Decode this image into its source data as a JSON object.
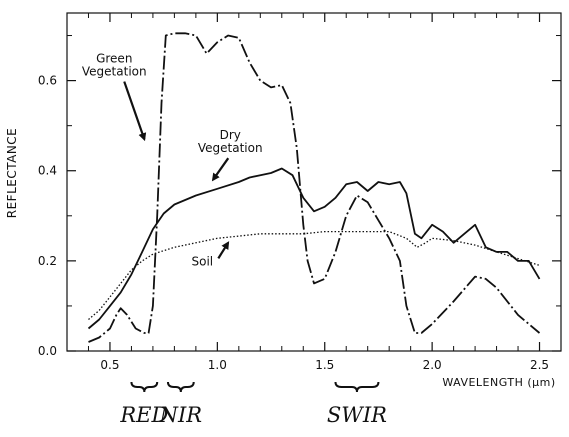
{
  "chart_data": {
    "type": "line",
    "title": "",
    "xlabel": "WAVELENGTH (μm)",
    "ylabel": "REFLECTANCE",
    "xlim": [
      0.3,
      2.6
    ],
    "ylim": [
      0.0,
      0.75
    ],
    "x_ticks": [
      "0.5",
      "1.0",
      "1.5",
      "2.0",
      "2.5"
    ],
    "y_ticks": [
      "0.0",
      "0.2",
      "0.4",
      "0.6"
    ],
    "grid": false,
    "legend": "none",
    "series": [
      {
        "name": "Green Vegetation",
        "style": "long-dash",
        "color": "#111111",
        "points": [
          [
            0.4,
            0.02
          ],
          [
            0.45,
            0.03
          ],
          [
            0.5,
            0.05
          ],
          [
            0.53,
            0.08
          ],
          [
            0.55,
            0.095
          ],
          [
            0.58,
            0.08
          ],
          [
            0.62,
            0.05
          ],
          [
            0.66,
            0.04
          ],
          [
            0.68,
            0.04
          ],
          [
            0.7,
            0.1
          ],
          [
            0.72,
            0.3
          ],
          [
            0.74,
            0.55
          ],
          [
            0.76,
            0.7
          ],
          [
            0.8,
            0.705
          ],
          [
            0.85,
            0.705
          ],
          [
            0.9,
            0.7
          ],
          [
            0.95,
            0.66
          ],
          [
            1.0,
            0.685
          ],
          [
            1.05,
            0.7
          ],
          [
            1.1,
            0.695
          ],
          [
            1.15,
            0.64
          ],
          [
            1.2,
            0.6
          ],
          [
            1.25,
            0.585
          ],
          [
            1.3,
            0.59
          ],
          [
            1.34,
            0.55
          ],
          [
            1.37,
            0.45
          ],
          [
            1.4,
            0.28
          ],
          [
            1.42,
            0.2
          ],
          [
            1.45,
            0.15
          ],
          [
            1.5,
            0.16
          ],
          [
            1.55,
            0.22
          ],
          [
            1.6,
            0.3
          ],
          [
            1.65,
            0.345
          ],
          [
            1.7,
            0.33
          ],
          [
            1.75,
            0.29
          ],
          [
            1.8,
            0.25
          ],
          [
            1.85,
            0.2
          ],
          [
            1.88,
            0.1
          ],
          [
            1.92,
            0.04
          ],
          [
            1.95,
            0.04
          ],
          [
            2.0,
            0.06
          ],
          [
            2.1,
            0.11
          ],
          [
            2.2,
            0.165
          ],
          [
            2.25,
            0.16
          ],
          [
            2.3,
            0.14
          ],
          [
            2.4,
            0.08
          ],
          [
            2.45,
            0.06
          ],
          [
            2.5,
            0.04
          ]
        ]
      },
      {
        "name": "Dry Vegetation",
        "style": "solid",
        "color": "#111111",
        "points": [
          [
            0.4,
            0.05
          ],
          [
            0.45,
            0.07
          ],
          [
            0.5,
            0.1
          ],
          [
            0.55,
            0.13
          ],
          [
            0.6,
            0.17
          ],
          [
            0.65,
            0.22
          ],
          [
            0.7,
            0.27
          ],
          [
            0.75,
            0.305
          ],
          [
            0.8,
            0.325
          ],
          [
            0.9,
            0.345
          ],
          [
            1.0,
            0.36
          ],
          [
            1.1,
            0.375
          ],
          [
            1.15,
            0.385
          ],
          [
            1.2,
            0.39
          ],
          [
            1.25,
            0.395
          ],
          [
            1.3,
            0.405
          ],
          [
            1.35,
            0.39
          ],
          [
            1.4,
            0.34
          ],
          [
            1.45,
            0.31
          ],
          [
            1.5,
            0.32
          ],
          [
            1.55,
            0.34
          ],
          [
            1.6,
            0.37
          ],
          [
            1.65,
            0.375
          ],
          [
            1.7,
            0.355
          ],
          [
            1.75,
            0.375
          ],
          [
            1.8,
            0.37
          ],
          [
            1.85,
            0.375
          ],
          [
            1.88,
            0.35
          ],
          [
            1.92,
            0.26
          ],
          [
            1.95,
            0.25
          ],
          [
            2.0,
            0.28
          ],
          [
            2.05,
            0.265
          ],
          [
            2.1,
            0.24
          ],
          [
            2.15,
            0.26
          ],
          [
            2.2,
            0.28
          ],
          [
            2.25,
            0.23
          ],
          [
            2.3,
            0.22
          ],
          [
            2.35,
            0.22
          ],
          [
            2.4,
            0.2
          ],
          [
            2.45,
            0.2
          ],
          [
            2.5,
            0.16
          ]
        ]
      },
      {
        "name": "Soil",
        "style": "dotted",
        "color": "#111111",
        "points": [
          [
            0.4,
            0.07
          ],
          [
            0.45,
            0.09
          ],
          [
            0.5,
            0.12
          ],
          [
            0.55,
            0.15
          ],
          [
            0.6,
            0.18
          ],
          [
            0.65,
            0.2
          ],
          [
            0.7,
            0.215
          ],
          [
            0.8,
            0.23
          ],
          [
            0.9,
            0.24
          ],
          [
            1.0,
            0.25
          ],
          [
            1.1,
            0.255
          ],
          [
            1.2,
            0.26
          ],
          [
            1.3,
            0.26
          ],
          [
            1.4,
            0.26
          ],
          [
            1.5,
            0.265
          ],
          [
            1.6,
            0.265
          ],
          [
            1.7,
            0.265
          ],
          [
            1.8,
            0.265
          ],
          [
            1.88,
            0.25
          ],
          [
            1.93,
            0.23
          ],
          [
            1.97,
            0.24
          ],
          [
            2.0,
            0.25
          ],
          [
            2.1,
            0.245
          ],
          [
            2.2,
            0.235
          ],
          [
            2.3,
            0.22
          ],
          [
            2.4,
            0.205
          ],
          [
            2.5,
            0.19
          ]
        ]
      }
    ],
    "annotations": [
      {
        "text_lines": [
          "Green",
          "Vegetation"
        ],
        "at": [
          0.52,
          0.64
        ],
        "arrow_to": [
          0.66,
          0.47
        ]
      },
      {
        "text_lines": [
          "Dry",
          "Vegetation"
        ],
        "at": [
          1.06,
          0.47
        ],
        "arrow_to": [
          0.98,
          0.38
        ]
      },
      {
        "text_lines": [
          "Soil"
        ],
        "at": [
          0.93,
          0.19
        ],
        "arrow_to": [
          1.05,
          0.24
        ]
      }
    ],
    "bands": [
      {
        "label": "RED",
        "range": [
          0.6,
          0.72
        ]
      },
      {
        "label": "NIR",
        "range": [
          0.77,
          0.89
        ]
      },
      {
        "label": "SWIR",
        "range": [
          1.55,
          1.75
        ]
      }
    ]
  }
}
